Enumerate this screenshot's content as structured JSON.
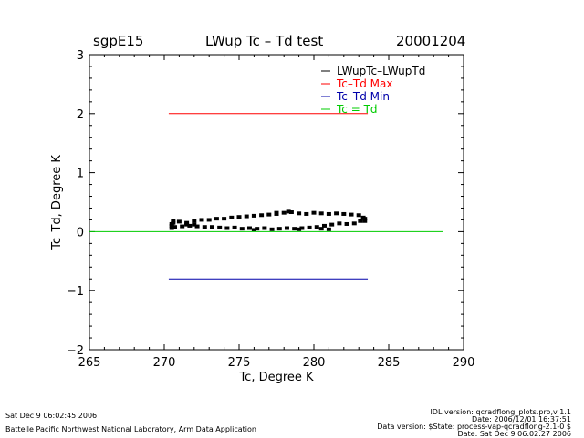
{
  "header": {
    "site": "sgpE15",
    "title": "LWup Tc – Td test",
    "date": "20001204"
  },
  "footer": {
    "left_line1": "Sat Dec  9 06:02:45 2006",
    "left_line2": "Battelle Pacific Northwest National Laboratory, Arm Data Application",
    "right_line1": "IDL version: qcradflong_plots.pro,v 1.1",
    "right_line2": "Date: 2006/12/01 16:37:51",
    "right_line3": "Data version: $State: process-vap-qcradflong-2.1-0 $",
    "right_line4": "Date: Sat Dec  9 06:02:27 2006"
  },
  "chart_data": {
    "type": "scatter",
    "title": "LWup Tc – Td test",
    "xlabel": "Tc, Degree K",
    "ylabel": "Tc–Td, Degree K",
    "xlim": [
      265,
      290
    ],
    "ylim": [
      -2,
      3
    ],
    "xticks": [
      "265",
      "270",
      "275",
      "280",
      "285",
      "290"
    ],
    "yticks": [
      "−2",
      "−1",
      "0",
      "1",
      "2",
      "3"
    ],
    "legend_position": "top-right",
    "series": [
      {
        "name": "LWupTc–LWupTd",
        "color": "#000000",
        "kind": "scatter",
        "points": [
          [
            270.5,
            0.13
          ],
          [
            271.0,
            0.17
          ],
          [
            271.5,
            0.15
          ],
          [
            272.0,
            0.18
          ],
          [
            272.5,
            0.2
          ],
          [
            273.0,
            0.2
          ],
          [
            273.5,
            0.22
          ],
          [
            274.0,
            0.22
          ],
          [
            274.5,
            0.24
          ],
          [
            275.0,
            0.25
          ],
          [
            275.5,
            0.26
          ],
          [
            276.0,
            0.27
          ],
          [
            276.5,
            0.28
          ],
          [
            277.0,
            0.29
          ],
          [
            277.5,
            0.3
          ],
          [
            278.0,
            0.32
          ],
          [
            278.5,
            0.33
          ],
          [
            279.0,
            0.31
          ],
          [
            279.5,
            0.3
          ],
          [
            280.0,
            0.32
          ],
          [
            280.5,
            0.31
          ],
          [
            281.0,
            0.3
          ],
          [
            281.5,
            0.31
          ],
          [
            282.0,
            0.3
          ],
          [
            282.5,
            0.29
          ],
          [
            283.0,
            0.28
          ],
          [
            283.3,
            0.24
          ],
          [
            283.1,
            0.18
          ],
          [
            282.7,
            0.14
          ],
          [
            282.2,
            0.13
          ],
          [
            281.7,
            0.14
          ],
          [
            281.2,
            0.12
          ],
          [
            280.7,
            0.1
          ],
          [
            280.2,
            0.08
          ],
          [
            279.7,
            0.07
          ],
          [
            279.2,
            0.06
          ],
          [
            278.7,
            0.05
          ],
          [
            278.2,
            0.06
          ],
          [
            277.7,
            0.05
          ],
          [
            277.2,
            0.04
          ],
          [
            276.7,
            0.06
          ],
          [
            276.2,
            0.05
          ],
          [
            275.7,
            0.06
          ],
          [
            275.2,
            0.05
          ],
          [
            274.7,
            0.07
          ],
          [
            274.2,
            0.06
          ],
          [
            273.7,
            0.07
          ],
          [
            273.2,
            0.08
          ],
          [
            272.7,
            0.08
          ],
          [
            272.2,
            0.09
          ],
          [
            271.7,
            0.1
          ],
          [
            271.2,
            0.09
          ],
          [
            270.7,
            0.08
          ],
          [
            270.5,
            0.06
          ],
          [
            270.5,
            0.1
          ],
          [
            270.6,
            0.15
          ],
          [
            270.6,
            0.18
          ],
          [
            283.4,
            0.22
          ],
          [
            283.4,
            0.18
          ],
          [
            279.0,
            0.04
          ],
          [
            280.5,
            0.05
          ],
          [
            281.0,
            0.04
          ],
          [
            276.0,
            0.03
          ],
          [
            277.5,
            0.32
          ],
          [
            278.3,
            0.34
          ],
          [
            271.5,
            0.12
          ],
          [
            272.0,
            0.12
          ]
        ]
      },
      {
        "name": "Tc–Td Max",
        "color": "#ff0000",
        "kind": "line",
        "x": [
          270.3,
          283.6
        ],
        "y": [
          2.0,
          2.0
        ]
      },
      {
        "name": "Tc–Td Min",
        "color": "#0000aa",
        "kind": "line",
        "x": [
          270.3,
          283.6
        ],
        "y": [
          -0.8,
          -0.8
        ]
      },
      {
        "name": "Tc = Td",
        "color": "#00cc00",
        "kind": "line",
        "x": [
          265,
          288.6
        ],
        "y": [
          0,
          0
        ]
      }
    ]
  }
}
